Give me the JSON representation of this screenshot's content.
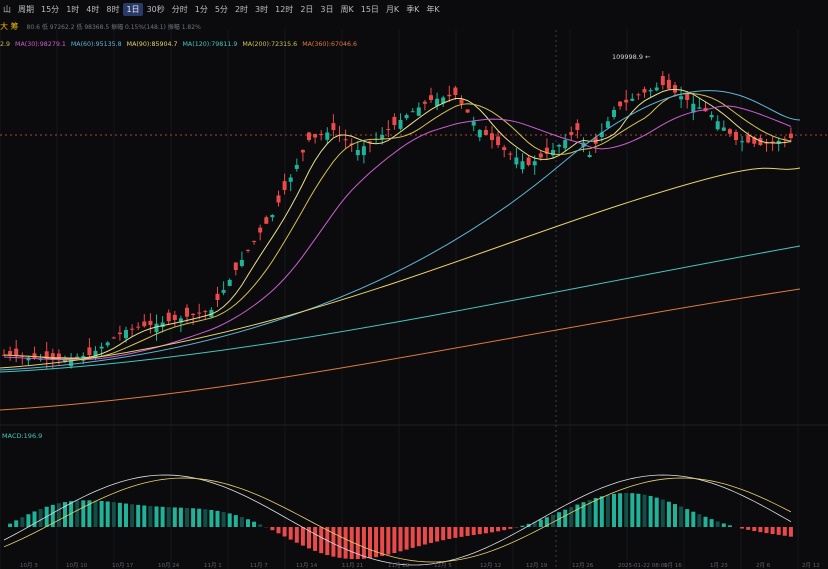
{
  "toolbar": {
    "items": [
      "山",
      "周期",
      "15分",
      "1时",
      "4时",
      "8时",
      "1日",
      "30秒",
      "分时",
      "1分",
      "5分",
      "2时",
      "3时",
      "12时",
      "2日",
      "3日",
      "周K",
      "15日",
      "月K",
      "季K",
      "年K"
    ],
    "active_index": 6
  },
  "info_row": {
    "label": "大 筹",
    "stats": "80.6  低 97262.2  低 98368.5  振幅 0.15%(148.1)  振幅 1.82%"
  },
  "ma_row": {
    "ma1": "2.9",
    "ma30": "MA(30):98279.1",
    "ma60": "MA(60):95135.8",
    "ma90": "MA(90):85904.7",
    "ma120": "MA(120):79811.9",
    "ma200": "MA(200):72315.6",
    "ma360": "MA(360):67046.6"
  },
  "price_high_label": "109998.9 ←",
  "macd_label": "MACD:196.9",
  "x_axis_labels": [
    "10月 3",
    "10月 10",
    "10月 17",
    "10月 24",
    "11月 1",
    "11月 7",
    "11月 14",
    "11月 21",
    "11月 28",
    "12月 5",
    "12月 12",
    "12月 19",
    "12月 26",
    "2025-01-22 08:00",
    "1月 16",
    "1月 23",
    "2月 6",
    "2月 12"
  ],
  "colors": {
    "up": "#1fb39a",
    "down": "#ea4a4a",
    "bg": "#0b0b0d"
  }
}
